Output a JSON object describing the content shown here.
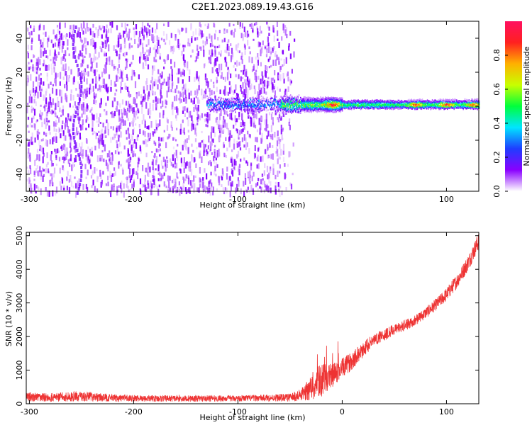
{
  "title": "C2E1.2023.089.19.43.G16",
  "chart_data": [
    {
      "type": "heatmap",
      "name": "spectrogram",
      "xlabel": "Height of straight line (km)",
      "ylabel": "Frequency (Hz)",
      "xlim": [
        -303,
        131
      ],
      "ylim": [
        -50,
        50
      ],
      "xticks": [
        -300,
        -200,
        -100,
        0,
        100
      ],
      "xtick_labels": [
        "-300",
        "-200",
        "-100",
        "0",
        "100"
      ],
      "yticks": [
        -40,
        -20,
        0,
        20,
        40
      ],
      "ytick_labels": [
        "-40",
        "-20",
        "0",
        "20",
        "40"
      ],
      "noise_region_km": [
        -303,
        -45
      ],
      "signal_center_freq_hz": 1.5,
      "signal_bandwidth_hz": 4,
      "hot_spots_km": [
        -10,
        70,
        100,
        125
      ],
      "colorbar": {
        "label": "Normalized spectral amplitude",
        "range": [
          0.0,
          1.0
        ],
        "ticks": [
          0.0,
          0.2,
          0.4,
          0.6,
          0.8
        ],
        "tick_labels": [
          "0.0",
          "0.2",
          "0.4",
          "0.6",
          "0.8"
        ],
        "colors": [
          "#ffffff",
          "#8a00ff",
          "#1f3dff",
          "#00e5ff",
          "#00ff3c",
          "#c8ff00",
          "#ffb000",
          "#ff2020",
          "#ff1060"
        ]
      }
    },
    {
      "type": "line",
      "name": "snr",
      "xlabel": "Height of straight line (km)",
      "ylabel": "SNR (10 * v/v)",
      "xlim": [
        -303,
        131
      ],
      "ylim": [
        0,
        5100
      ],
      "xticks": [
        -300,
        -200,
        -100,
        0,
        100
      ],
      "xtick_labels": [
        "-300",
        "-200",
        "-100",
        "0",
        "100"
      ],
      "yticks": [
        0,
        1000,
        2000,
        3000,
        4000,
        5000
      ],
      "ytick_labels": [
        "0",
        "1000",
        "2000",
        "3000",
        "4000",
        "5000"
      ],
      "color": "#ee3333",
      "series": [
        {
          "name": "SNR",
          "x": [
            -303,
            -280,
            -250,
            -220,
            -200,
            -150,
            -100,
            -70,
            -50,
            -40,
            -30,
            -25,
            -20,
            -15,
            -10,
            -5,
            0,
            10,
            20,
            30,
            40,
            50,
            60,
            70,
            80,
            90,
            100,
            110,
            120,
            131
          ],
          "y": [
            200,
            190,
            220,
            170,
            160,
            155,
            160,
            175,
            185,
            250,
            450,
            620,
            700,
            760,
            850,
            920,
            1050,
            1300,
            1600,
            1900,
            2050,
            2200,
            2330,
            2480,
            2700,
            2950,
            3250,
            3650,
            4150,
            4850
          ],
          "spread": [
            140,
            130,
            150,
            110,
            100,
            95,
            90,
            100,
            120,
            180,
            350,
            450,
            500,
            420,
            380,
            330,
            300,
            260,
            230,
            200,
            180,
            170,
            160,
            160,
            170,
            180,
            200,
            220,
            240,
            260
          ]
        }
      ]
    }
  ]
}
